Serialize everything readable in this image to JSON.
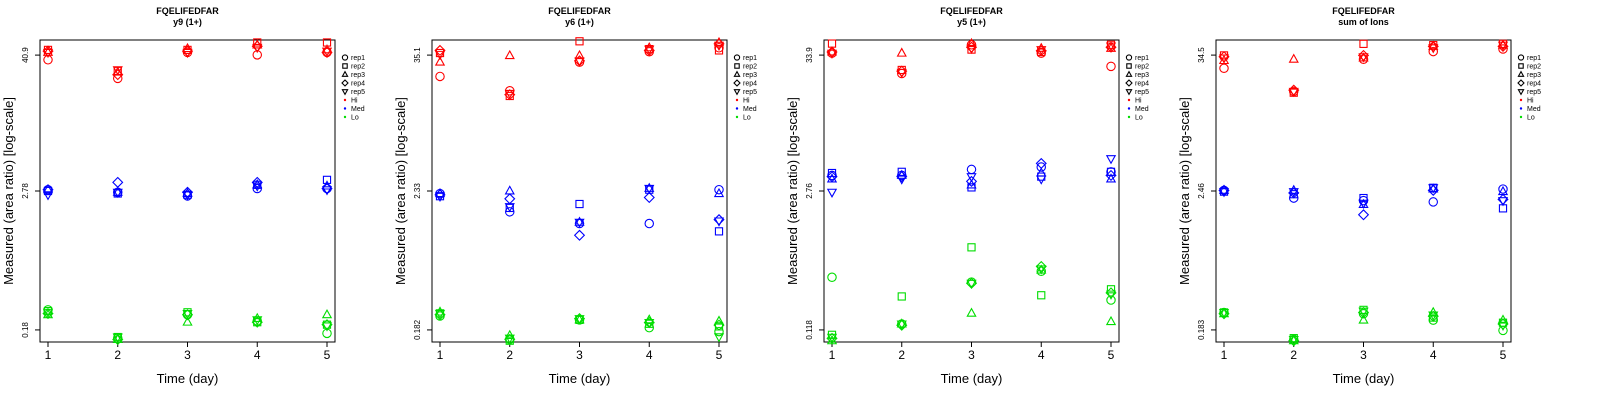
{
  "legend": {
    "reps": [
      "rep1",
      "rep2",
      "rep3",
      "rep4",
      "rep5"
    ],
    "groups": [
      "Hi",
      "Med",
      "Lo"
    ]
  },
  "colors": {
    "Hi": "#ff0000",
    "Med": "#0000ff",
    "Lo": "#00dd00",
    "axis": "#000000"
  },
  "chart_data": [
    {
      "type": "scatter",
      "title": "FQELIFEDFAR",
      "subtitle": "y9 (1+)",
      "xlabel": "Time (day)",
      "ylabel": "Measured (area ratio) [log-scale]",
      "x": [
        1,
        2,
        3,
        4,
        5
      ],
      "yticks": [
        "40.9",
        "2.78",
        "0.18"
      ],
      "ylim_log": [
        -0.78,
        1.66
      ],
      "series": [
        {
          "group": "Hi",
          "rep": "rep1",
          "values": [
            1.5,
            1.35,
            1.56,
            1.54,
            1.56
          ]
        },
        {
          "group": "Hi",
          "rep": "rep2",
          "values": [
            1.58,
            1.41,
            1.58,
            1.64,
            1.64
          ]
        },
        {
          "group": "Hi",
          "rep": "rep3",
          "values": [
            1.56,
            1.4,
            1.59,
            1.62,
            1.58
          ]
        },
        {
          "group": "Hi",
          "rep": "rep4",
          "values": [
            1.57,
            1.38,
            1.57,
            1.61,
            1.56
          ]
        },
        {
          "group": "Hi",
          "rep": "rep5",
          "values": [
            1.56,
            1.42,
            1.56,
            1.6,
            1.57
          ]
        },
        {
          "group": "Med",
          "rep": "rep1",
          "values": [
            0.45,
            0.43,
            0.4,
            0.46,
            0.46
          ]
        },
        {
          "group": "Med",
          "rep": "rep2",
          "values": [
            0.44,
            0.42,
            0.41,
            0.49,
            0.53
          ]
        },
        {
          "group": "Med",
          "rep": "rep3",
          "values": [
            0.45,
            0.43,
            0.42,
            0.49,
            0.48
          ]
        },
        {
          "group": "Med",
          "rep": "rep4",
          "values": [
            0.45,
            0.51,
            0.43,
            0.51,
            0.46
          ]
        },
        {
          "group": "Med",
          "rep": "rep5",
          "values": [
            0.41,
            0.43,
            0.41,
            0.48,
            0.45
          ]
        },
        {
          "group": "Lo",
          "rep": "rep1",
          "values": [
            -0.52,
            -0.75,
            -0.56,
            -0.61,
            -0.71
          ]
        },
        {
          "group": "Lo",
          "rep": "rep2",
          "values": [
            -0.53,
            -0.74,
            -0.54,
            -0.62,
            -0.64
          ]
        },
        {
          "group": "Lo",
          "rep": "rep3",
          "values": [
            -0.56,
            -0.76,
            -0.62,
            -0.59,
            -0.56
          ]
        },
        {
          "group": "Lo",
          "rep": "rep4",
          "values": [
            -0.55,
            -0.76,
            -0.56,
            -0.62,
            -0.64
          ]
        },
        {
          "group": "Lo",
          "rep": "rep5",
          "values": [
            -0.54,
            -0.74,
            -0.55,
            -0.6,
            -0.65
          ]
        }
      ]
    },
    {
      "type": "scatter",
      "title": "FQELIFEDFAR",
      "subtitle": "y6 (1+)",
      "xlabel": "Time (day)",
      "ylabel": "Measured (area ratio) [log-scale]",
      "x": [
        1,
        2,
        3,
        4,
        5
      ],
      "yticks": [
        "35.1",
        "2.33",
        "0.182"
      ],
      "ylim_log": [
        -0.76,
        1.56
      ],
      "series": [
        {
          "group": "Hi",
          "rep": "rep1",
          "values": [
            1.28,
            1.17,
            1.39,
            1.47,
            1.5
          ]
        },
        {
          "group": "Hi",
          "rep": "rep2",
          "values": [
            1.46,
            1.13,
            1.55,
            1.49,
            1.48
          ]
        },
        {
          "group": "Hi",
          "rep": "rep3",
          "values": [
            1.39,
            1.44,
            1.44,
            1.5,
            1.54
          ]
        },
        {
          "group": "Hi",
          "rep": "rep4",
          "values": [
            1.48,
            1.14,
            1.4,
            1.48,
            1.53
          ]
        },
        {
          "group": "Hi",
          "rep": "rep5",
          "values": [
            1.45,
            1.15,
            1.4,
            1.49,
            1.52
          ]
        },
        {
          "group": "Med",
          "rep": "rep1",
          "values": [
            0.38,
            0.24,
            0.15,
            0.15,
            0.41
          ]
        },
        {
          "group": "Med",
          "rep": "rep2",
          "values": [
            0.36,
            0.27,
            0.3,
            0.41,
            0.09
          ]
        },
        {
          "group": "Med",
          "rep": "rep3",
          "values": [
            0.38,
            0.4,
            0.16,
            0.42,
            0.38
          ]
        },
        {
          "group": "Med",
          "rep": "rep4",
          "values": [
            0.37,
            0.34,
            0.06,
            0.35,
            0.18
          ]
        },
        {
          "group": "Med",
          "rep": "rep5",
          "values": [
            0.36,
            0.28,
            0.16,
            0.42,
            0.17
          ]
        },
        {
          "group": "Lo",
          "rep": "rep1",
          "values": [
            -0.56,
            -0.74,
            -0.59,
            -0.65,
            -0.68
          ]
        },
        {
          "group": "Lo",
          "rep": "rep2",
          "values": [
            -0.54,
            -0.75,
            -0.59,
            -0.62,
            -0.64
          ]
        },
        {
          "group": "Lo",
          "rep": "rep3",
          "values": [
            -0.53,
            -0.71,
            -0.59,
            -0.59,
            -0.6
          ]
        },
        {
          "group": "Lo",
          "rep": "rep4",
          "values": [
            -0.55,
            -0.74,
            -0.58,
            -0.61,
            -0.63
          ]
        },
        {
          "group": "Lo",
          "rep": "rep5",
          "values": [
            -0.54,
            -0.73,
            -0.58,
            -0.61,
            -0.72
          ]
        }
      ]
    },
    {
      "type": "scatter",
      "title": "FQELIFEDFAR",
      "subtitle": "y5 (1+)",
      "xlabel": "Time (day)",
      "ylabel": "Measured (area ratio) [log-scale]",
      "x": [
        1,
        2,
        3,
        4,
        5
      ],
      "yticks": [
        "33.9",
        "2.76",
        "0.118"
      ],
      "ylim_log": [
        -0.96,
        1.56
      ],
      "series": [
        {
          "group": "Hi",
          "rep": "rep1",
          "values": [
            1.45,
            1.28,
            1.52,
            1.45,
            1.34
          ]
        },
        {
          "group": "Hi",
          "rep": "rep2",
          "values": [
            1.53,
            1.31,
            1.48,
            1.46,
            1.52
          ]
        },
        {
          "group": "Hi",
          "rep": "rep3",
          "values": [
            1.46,
            1.45,
            1.53,
            1.49,
            1.49
          ]
        },
        {
          "group": "Hi",
          "rep": "rep4",
          "values": [
            1.46,
            1.3,
            1.5,
            1.47,
            1.5
          ]
        },
        {
          "group": "Hi",
          "rep": "rep5",
          "values": [
            1.45,
            1.29,
            1.49,
            1.48,
            1.51
          ]
        },
        {
          "group": "Med",
          "rep": "rep1",
          "values": [
            0.43,
            0.43,
            0.48,
            0.5,
            0.46
          ]
        },
        {
          "group": "Med",
          "rep": "rep2",
          "values": [
            0.45,
            0.46,
            0.33,
            0.42,
            0.46
          ]
        },
        {
          "group": "Med",
          "rep": "rep3",
          "values": [
            0.4,
            0.43,
            0.35,
            0.45,
            0.4
          ]
        },
        {
          "group": "Med",
          "rep": "rep4",
          "values": [
            0.42,
            0.42,
            0.38,
            0.53,
            0.43
          ]
        },
        {
          "group": "Med",
          "rep": "rep5",
          "values": [
            0.29,
            0.4,
            0.42,
            0.4,
            0.57
          ]
        },
        {
          "group": "Lo",
          "rep": "rep1",
          "values": [
            -0.42,
            -0.81,
            -0.46,
            -0.37,
            -0.61
          ]
        },
        {
          "group": "Lo",
          "rep": "rep2",
          "values": [
            -0.9,
            -0.58,
            -0.17,
            -0.57,
            -0.52
          ]
        },
        {
          "group": "Lo",
          "rep": "rep3",
          "values": [
            -0.95,
            -0.81,
            -0.72,
            -0.36,
            -0.79
          ]
        },
        {
          "group": "Lo",
          "rep": "rep4",
          "values": [
            -0.93,
            -0.82,
            -0.47,
            -0.33,
            -0.55
          ]
        },
        {
          "group": "Lo",
          "rep": "rep5",
          "values": [
            -0.92,
            -0.81,
            -0.47,
            -0.35,
            -0.56
          ]
        }
      ]
    },
    {
      "type": "scatter",
      "title": "FQELIFEDFAR",
      "subtitle": "sum of Ions",
      "xlabel": "Time (day)",
      "ylabel": "Measured (area ratio) [log-scale]",
      "x": [
        1,
        2,
        3,
        4,
        5
      ],
      "yticks": [
        "34.5",
        "2.46",
        "0.183"
      ],
      "ylim_log": [
        -0.78,
        1.57
      ],
      "series": [
        {
          "group": "Hi",
          "rep": "rep1",
          "values": [
            1.35,
            1.17,
            1.42,
            1.48,
            1.5
          ]
        },
        {
          "group": "Hi",
          "rep": "rep2",
          "values": [
            1.45,
            1.16,
            1.54,
            1.53,
            1.54
          ]
        },
        {
          "group": "Hi",
          "rep": "rep3",
          "values": [
            1.41,
            1.42,
            1.43,
            1.52,
            1.53
          ]
        },
        {
          "group": "Hi",
          "rep": "rep4",
          "values": [
            1.44,
            1.18,
            1.45,
            1.52,
            1.52
          ]
        },
        {
          "group": "Hi",
          "rep": "rep5",
          "values": [
            1.43,
            1.17,
            1.44,
            1.51,
            1.53
          ]
        },
        {
          "group": "Med",
          "rep": "rep1",
          "values": [
            0.4,
            0.34,
            0.32,
            0.31,
            0.41
          ]
        },
        {
          "group": "Med",
          "rep": "rep2",
          "values": [
            0.39,
            0.37,
            0.34,
            0.42,
            0.26
          ]
        },
        {
          "group": "Med",
          "rep": "rep3",
          "values": [
            0.4,
            0.4,
            0.29,
            0.41,
            0.39
          ]
        },
        {
          "group": "Med",
          "rep": "rep4",
          "values": [
            0.4,
            0.38,
            0.21,
            0.4,
            0.33
          ]
        },
        {
          "group": "Med",
          "rep": "rep5",
          "values": [
            0.39,
            0.39,
            0.3,
            0.42,
            0.32
          ]
        },
        {
          "group": "Lo",
          "rep": "rep1",
          "values": [
            -0.55,
            -0.76,
            -0.56,
            -0.61,
            -0.69
          ]
        },
        {
          "group": "Lo",
          "rep": "rep2",
          "values": [
            -0.55,
            -0.75,
            -0.53,
            -0.59,
            -0.63
          ]
        },
        {
          "group": "Lo",
          "rep": "rep3",
          "values": [
            -0.56,
            -0.77,
            -0.61,
            -0.55,
            -0.61
          ]
        },
        {
          "group": "Lo",
          "rep": "rep4",
          "values": [
            -0.56,
            -0.77,
            -0.55,
            -0.58,
            -0.64
          ]
        },
        {
          "group": "Lo",
          "rep": "rep5",
          "values": [
            -0.55,
            -0.76,
            -0.54,
            -0.57,
            -0.65
          ]
        }
      ]
    }
  ]
}
